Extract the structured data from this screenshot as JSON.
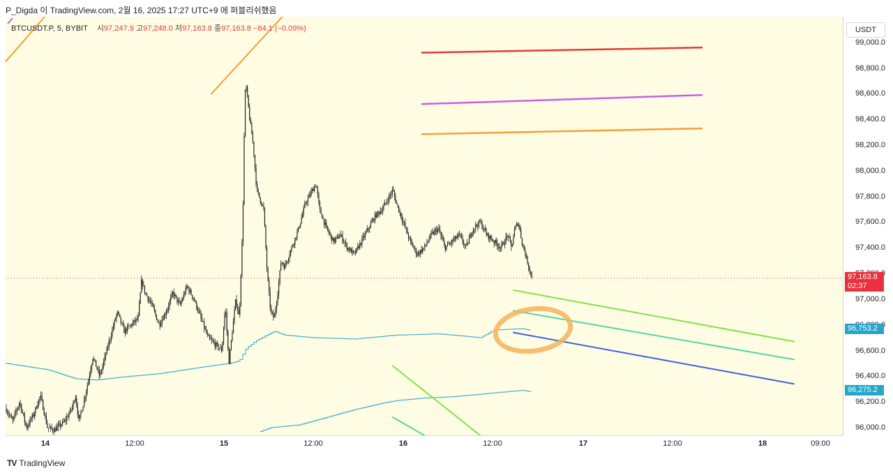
{
  "header": {
    "text": "P_Digda 이 TradingView.com, 2월 16, 2025 17:27 UTC+9 에 퍼블리쉬했음"
  },
  "legend": {
    "symbol": "BTCUSDT.P, 5, BYBIT",
    "open_label": "시",
    "open_value": "97,247.9",
    "high_label": "고",
    "high_value": "97,248.0",
    "low_label": "저",
    "low_value": "97,163.8",
    "close_label": "종",
    "close_value": "97,163.8",
    "change": "−84.1 (−0.09%)"
  },
  "price_axis": {
    "currency": "USDT",
    "ticks": [
      "99,000.0",
      "98,800.0",
      "98,600.0",
      "98,400.0",
      "98,200.0",
      "98,000.0",
      "97,800.0",
      "97,600.0",
      "97,400.0",
      "97,200.0",
      "97,000.0",
      "96,800.0",
      "96,600.0",
      "96,400.0",
      "96,200.0",
      "96,000.0"
    ],
    "current_price_badge": "97,163.8",
    "countdown": "02:37",
    "upper_band_badge": "96,753.2",
    "lower_band_badge": "96,275.2"
  },
  "time_axis": {
    "ticks": [
      "14",
      "12:00",
      "15",
      "12:00",
      "16",
      "12:00",
      "17",
      "12:00",
      "18",
      "09:00"
    ]
  },
  "footer": {
    "logo_mark": "TV",
    "brand": "TradingView"
  },
  "colors": {
    "chart_bg": "#fffce4",
    "candle": "#222222",
    "band": "#26a6c9",
    "current_price": "#e8313d",
    "level_red": "#e53935",
    "level_magenta": "#c85ee8",
    "level_orange": "#f5a033",
    "channel_green": "#7ee346",
    "channel_teal": "#4fd6a8",
    "channel_blue": "#3d5fe3",
    "highlight_circle": "#f5b45a"
  },
  "chart_data": {
    "type": "candlestick",
    "symbol": "BTCUSDT.P",
    "timeframe": "5",
    "exchange": "BYBIT",
    "ylim": [
      95940,
      99200
    ],
    "last_price": 97163.8,
    "price_path": {
      "x": [
        0,
        5,
        10,
        20,
        30,
        40,
        50,
        60,
        70,
        85,
        95,
        100,
        105,
        112,
        118,
        125,
        135,
        150,
        160,
        170,
        180,
        190,
        195,
        200,
        210,
        220,
        230,
        240,
        250,
        260,
        265,
        270,
        280,
        290,
        300,
        310,
        315,
        320,
        330,
        335,
        340,
        343,
        345,
        350,
        355,
        360,
        370,
        375,
        380,
        385,
        390,
        395,
        400,
        410,
        420,
        430,
        440,
        445,
        450,
        460,
        470,
        480,
        490,
        500,
        510,
        520,
        530,
        540,
        550,
        555,
        560,
        570,
        580,
        590,
        600,
        610,
        620,
        630,
        640,
        650,
        660,
        670,
        680,
        690,
        700,
        710,
        720,
        725,
        730,
        735,
        740,
        745,
        750,
        755
      ],
      "y": [
        96150,
        96100,
        96050,
        96200,
        96000,
        96100,
        96250,
        96000,
        95980,
        96050,
        96150,
        96250,
        96050,
        96200,
        96350,
        96550,
        96400,
        96700,
        96900,
        96750,
        96800,
        96850,
        97150,
        97050,
        96950,
        96800,
        96900,
        97050,
        96950,
        97100,
        97050,
        97000,
        96850,
        96700,
        96650,
        96600,
        96950,
        96500,
        97000,
        96850,
        97600,
        98600,
        98650,
        98400,
        98200,
        97850,
        97700,
        97200,
        96900,
        96850,
        97050,
        97300,
        97250,
        97400,
        97550,
        97750,
        97850,
        97900,
        97700,
        97550,
        97450,
        97500,
        97400,
        97350,
        97450,
        97550,
        97650,
        97700,
        97800,
        97850,
        97750,
        97600,
        97450,
        97350,
        97400,
        97500,
        97550,
        97400,
        97450,
        97500,
        97400,
        97550,
        97600,
        97500,
        97450,
        97400,
        97500,
        97400,
        97550,
        97600,
        97450,
        97350,
        97250,
        97164
      ]
    },
    "bands": [
      {
        "x": [
          0,
          60,
          100,
          130,
          160,
          220,
          280,
          320,
          335,
          345,
          360,
          385,
          400,
          440,
          500,
          560,
          620,
          680,
          700,
          740,
          755
        ],
        "y": [
          96500,
          96450,
          96380,
          96370,
          96390,
          96420,
          96470,
          96500,
          96520,
          96620,
          96680,
          96750,
          96720,
          96700,
          96690,
          96720,
          96730,
          96700,
          96760,
          96770,
          96753
        ]
      },
      {
        "x": [
          365,
          380,
          420,
          460,
          500,
          540,
          560,
          600,
          640,
          680,
          700,
          740,
          755
        ],
        "y": [
          95970,
          96000,
          96020,
          96080,
          96140,
          96190,
          96210,
          96230,
          96240,
          96260,
          96270,
          96290,
          96275
        ]
      }
    ],
    "drawings": [
      {
        "name": "resistance-red",
        "x1": 597,
        "y1": 98920,
        "x2": 998,
        "y2": 98960
      },
      {
        "name": "resistance-magenta",
        "x1": 597,
        "y1": 98520,
        "x2": 998,
        "y2": 98590
      },
      {
        "name": "resistance-orange",
        "x1": 597,
        "y1": 98285,
        "x2": 998,
        "y2": 98330
      },
      {
        "name": "channel-green",
        "x1": 728,
        "y1": 97070,
        "x2": 1130,
        "y2": 96670
      },
      {
        "name": "channel-teal",
        "x1": 728,
        "y1": 96910,
        "x2": 1130,
        "y2": 96530
      },
      {
        "name": "channel-blue",
        "x1": 728,
        "y1": 96740,
        "x2": 1130,
        "y2": 96340
      },
      {
        "name": "lower-green",
        "x1": 555,
        "y1": 96480,
        "x2": 680,
        "y2": 95940
      },
      {
        "name": "lower-teal",
        "x1": 555,
        "y1": 96080,
        "x2": 600,
        "y2": 95940
      },
      {
        "name": "upper-left-orange",
        "x1": 0,
        "y1": 98850,
        "x2": 80,
        "y2": 99350
      },
      {
        "name": "upper-mid-orange",
        "x1": 295,
        "y1": 98600,
        "x2": 405,
        "y2": 99250
      }
    ]
  }
}
